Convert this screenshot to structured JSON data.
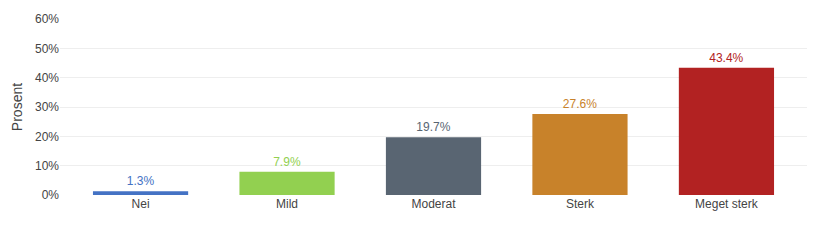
{
  "chart_data": {
    "type": "bar",
    "categories": [
      "Nei",
      "Mild",
      "Moderat",
      "Sterk",
      "Meget sterk"
    ],
    "values": [
      1.3,
      7.9,
      19.7,
      27.6,
      43.4
    ],
    "value_labels": [
      "1.3%",
      "7.9%",
      "19.7%",
      "27.6%",
      "43.4%"
    ],
    "colors": [
      "#4472C4",
      "#92D050",
      "#596572",
      "#C8822A",
      "#B22222"
    ],
    "ylabel": "Prosent",
    "ylim": [
      0,
      60
    ],
    "yticks": [
      {
        "value": 0,
        "label": "0%"
      },
      {
        "value": 10,
        "label": "10%"
      },
      {
        "value": 20,
        "label": "20%"
      },
      {
        "value": 30,
        "label": "30%"
      },
      {
        "value": 40,
        "label": "40%"
      },
      {
        "value": 50,
        "label": "50%"
      },
      {
        "value": 60,
        "label": "60%"
      }
    ],
    "grid": true,
    "data_labels": true
  }
}
